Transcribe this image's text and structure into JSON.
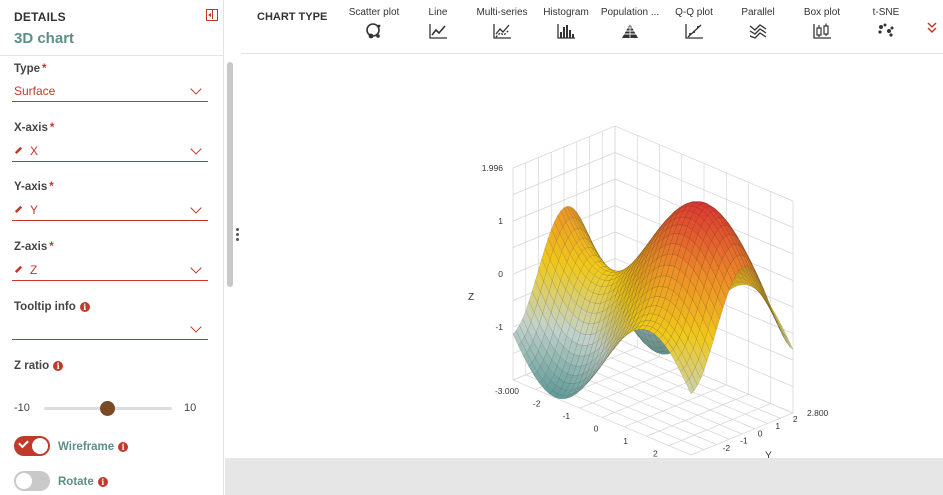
{
  "panel": {
    "header": "DETAILS",
    "title": "3D chart",
    "fields": {
      "type": {
        "label": "Type",
        "required": "*",
        "value": "Surface"
      },
      "x_axis": {
        "label": "X-axis",
        "required": "*",
        "value": "X"
      },
      "y_axis": {
        "label": "Y-axis",
        "required": "*",
        "value": "Y"
      },
      "z_axis": {
        "label": "Z-axis",
        "required": "*",
        "value": "Z"
      },
      "tooltip": {
        "label": "Tooltip info",
        "value": ""
      }
    },
    "z_ratio": {
      "label": "Z ratio",
      "min": "-10",
      "max": "10",
      "value": 0
    },
    "wireframe": {
      "label": "Wireframe",
      "on": true
    },
    "rotate": {
      "label": "Rotate",
      "on": false
    }
  },
  "chart_types": {
    "label": "CHART TYPE",
    "items": [
      {
        "label": "Scatter plot",
        "icon": "scatter-plot-icon"
      },
      {
        "label": "Line",
        "icon": "line-chart-icon"
      },
      {
        "label": "Multi-series",
        "icon": "multi-series-icon"
      },
      {
        "label": "Histogram",
        "icon": "histogram-icon"
      },
      {
        "label": "Population ...",
        "icon": "population-pyramid-icon"
      },
      {
        "label": "Q-Q plot",
        "icon": "qq-plot-icon"
      },
      {
        "label": "Parallel",
        "icon": "parallel-coordinates-icon"
      },
      {
        "label": "Box plot",
        "icon": "box-plot-icon"
      },
      {
        "label": "t-SNE",
        "icon": "tsne-icon"
      }
    ]
  },
  "colors": {
    "accent": "#c0392b",
    "teal": "#5e8e86",
    "thumb": "#7a4a26"
  },
  "chart_data": {
    "type": "surface",
    "zlabel": "Z",
    "ylabel": "Y",
    "z_ticks": [
      "1.996",
      "1",
      "0",
      "-1"
    ],
    "y_ticks": [
      "2.800",
      "2",
      "1",
      "0",
      "-1",
      "-2"
    ],
    "x_ticks": [
      "-3.000",
      "-2",
      "-1",
      "0",
      "1",
      "2"
    ],
    "x_range": [
      -3.0,
      3.0
    ],
    "y_range": [
      -3.0,
      2.8
    ],
    "z_range": [
      -1.996,
      1.996
    ],
    "function": "z = sin(x) + cos(y)",
    "wireframe": true,
    "colorscale": [
      "#5f9a98",
      "#c3d3cc",
      "#f0c919",
      "#ec8b2a",
      "#dc3a33"
    ]
  }
}
